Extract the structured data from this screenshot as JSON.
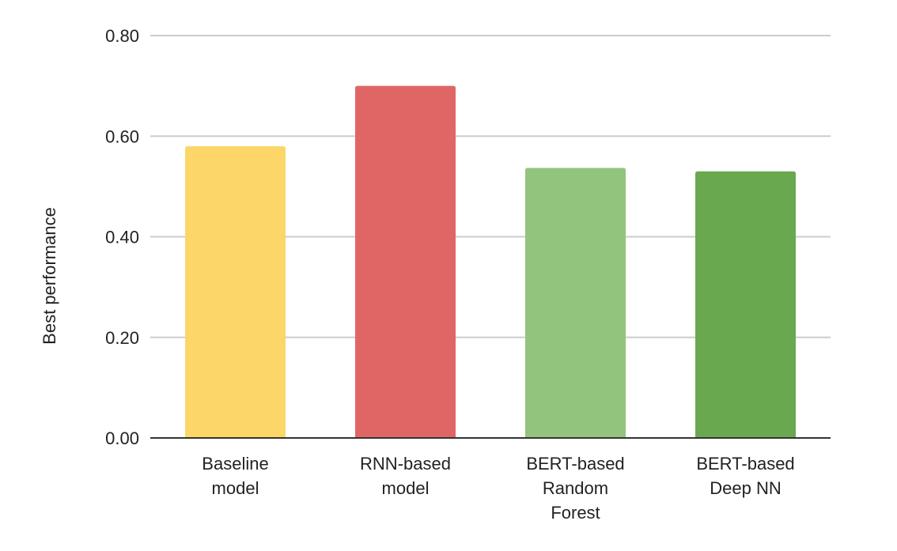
{
  "chart_data": {
    "type": "bar",
    "title": "",
    "xlabel": "",
    "ylabel": "Best performance",
    "ylim": [
      0,
      0.8
    ],
    "yticks": [
      "0.00",
      "0.20",
      "0.40",
      "0.60",
      "0.80"
    ],
    "ytick_values": [
      0,
      0.2,
      0.4,
      0.6,
      0.8
    ],
    "grid": true,
    "legend": "none",
    "categories": [
      [
        "Baseline",
        "model"
      ],
      [
        "RNN-based",
        "model"
      ],
      [
        "BERT-based",
        "Random",
        "Forest"
      ],
      [
        "BERT-based",
        "Deep NN"
      ]
    ],
    "values": [
      0.58,
      0.7,
      0.537,
      0.53
    ],
    "colors": [
      "#fcd668",
      "#e06666",
      "#93c47d",
      "#6aa84f"
    ]
  }
}
